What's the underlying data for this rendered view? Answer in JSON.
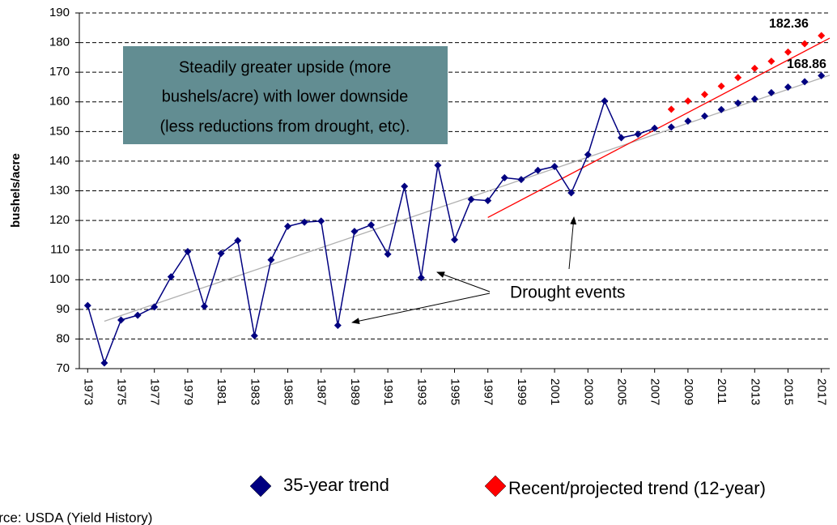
{
  "chart_data": {
    "type": "line",
    "y_label": "bushels/acre",
    "x": [
      1973,
      1974,
      1975,
      1976,
      1977,
      1978,
      1979,
      1980,
      1981,
      1982,
      1983,
      1984,
      1985,
      1986,
      1987,
      1988,
      1989,
      1990,
      1991,
      1992,
      1993,
      1994,
      1995,
      1996,
      1997,
      1998,
      1999,
      2000,
      2001,
      2002,
      2003,
      2004,
      2005,
      2006,
      2007,
      2008,
      2009,
      2010,
      2011,
      2012,
      2013,
      2014,
      2015,
      2016,
      2017
    ],
    "xlim": [
      1972.5,
      2017.5
    ],
    "xticks": [
      1973,
      1975,
      1977,
      1979,
      1981,
      1983,
      1985,
      1987,
      1989,
      1991,
      1993,
      1995,
      1997,
      1999,
      2001,
      2003,
      2005,
      2007,
      2009,
      2011,
      2013,
      2015,
      2017
    ],
    "ylim": [
      70,
      190
    ],
    "yticks": [
      70,
      80,
      90,
      100,
      110,
      120,
      130,
      140,
      150,
      160,
      170,
      180,
      190
    ],
    "grid": true,
    "history": {
      "color": "#000080",
      "values": [
        91.3,
        71.9,
        86.4,
        88.0,
        90.8,
        101.0,
        109.5,
        91.0,
        108.9,
        113.2,
        81.1,
        106.7,
        118.0,
        119.4,
        119.8,
        84.6,
        116.3,
        118.5,
        108.6,
        131.5,
        100.7,
        138.6,
        113.5,
        127.1,
        126.7,
        134.4,
        133.8,
        136.9,
        138.2,
        129.3,
        142.2,
        160.3,
        147.9,
        149.1,
        151.1,
        null,
        null,
        null,
        null,
        null,
        null,
        null,
        null,
        null,
        null
      ]
    },
    "series": [
      {
        "name": "35-year trend",
        "color": "#000080",
        "values": [
          null,
          null,
          null,
          null,
          null,
          null,
          null,
          null,
          null,
          null,
          null,
          null,
          null,
          null,
          null,
          null,
          null,
          null,
          null,
          null,
          null,
          null,
          null,
          null,
          null,
          null,
          null,
          null,
          null,
          null,
          null,
          null,
          null,
          null,
          null,
          151.5,
          153.5,
          155.2,
          157.4,
          159.6,
          161.0,
          163.1,
          165.0,
          166.8,
          168.86
        ]
      },
      {
        "name": "Recent/projected trend (12-year)",
        "color": "#ff0000",
        "values": [
          null,
          null,
          null,
          null,
          null,
          null,
          null,
          null,
          null,
          null,
          null,
          null,
          null,
          null,
          null,
          null,
          null,
          null,
          null,
          null,
          null,
          null,
          null,
          null,
          null,
          null,
          null,
          null,
          null,
          null,
          null,
          null,
          null,
          null,
          null,
          157.5,
          160.3,
          162.5,
          165.3,
          168.2,
          171.3,
          173.7,
          176.8,
          179.6,
          182.36
        ]
      }
    ],
    "trendlines": [
      {
        "color": "#b0b0b0",
        "x": [
          1974,
          2017.5
        ],
        "values": [
          86,
          169
        ]
      },
      {
        "color": "#ff0000",
        "x": [
          1997,
          2017.5
        ],
        "values": [
          121,
          181.5
        ]
      }
    ],
    "annotations": {
      "box_lines": [
        "Steadily greater upside (more",
        "bushels/acre) with lower downside",
        "(less reductions from drought, etc)."
      ],
      "drought": "Drought events",
      "source": "Source: USDA (Yield History)"
    }
  }
}
